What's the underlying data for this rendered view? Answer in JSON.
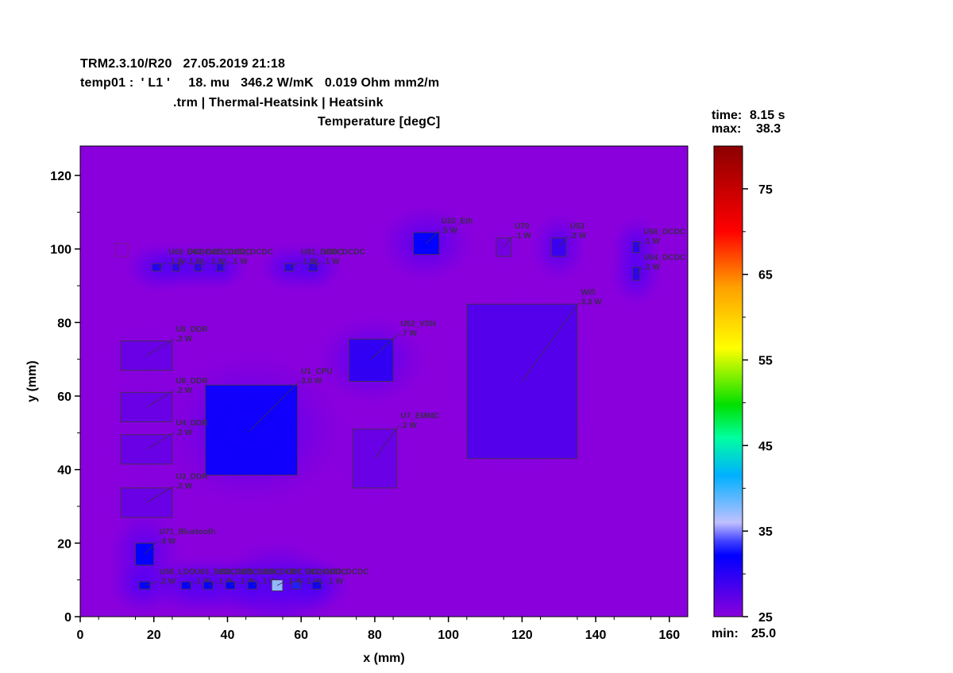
{
  "header": {
    "line1": "TRM2.3.10/R20   27.05.2019 21:18",
    "line2": "temp01 :  ' L1 '     18. mu   346.2 W/mK   0.019 Ohm mm2/m",
    "line3": ".trm | Thermal-Heatsink | Heatsink"
  },
  "info": {
    "time_label": "time:",
    "time_value": "8.15 s",
    "max_label": "max:",
    "max_value": "38.3",
    "min_label": "min:",
    "min_value": "25.0"
  },
  "chart_data": {
    "type": "heatmap",
    "title": "Temperature [degC]",
    "xlabel": "x (mm)",
    "ylabel": "y (mm)",
    "xlim": [
      0,
      165
    ],
    "ylim": [
      0,
      128
    ],
    "xticks": [
      0,
      20,
      40,
      60,
      80,
      100,
      120,
      140,
      160
    ],
    "yticks": [
      0,
      20,
      40,
      60,
      80,
      100,
      120
    ],
    "colorbar": {
      "range": [
        25,
        80
      ],
      "ticks": [
        25,
        35,
        45,
        55,
        65,
        75
      ],
      "colors": [
        "#8a00dc",
        "#0000ff",
        "#00b0ff",
        "#00e000",
        "#ffff00",
        "#ff8000",
        "#ff0000",
        "#8b0000"
      ]
    },
    "components": [
      {
        "name": "U1_CPU",
        "power": "3.0 W",
        "x1": 34,
        "x2": 59,
        "y1": 38.5,
        "y2": 63,
        "temp": 30.5,
        "lx": 60,
        "ly": 66,
        "ax": 46,
        "ay": 50.5
      },
      {
        "name": "U52_VSN",
        "power": ".7 W",
        "x1": 73,
        "x2": 85,
        "y1": 64,
        "y2": 75.5,
        "temp": 29,
        "lx": 87,
        "ly": 79,
        "ax": 79,
        "ay": 70
      },
      {
        "name": "Wifi",
        "power": "3.3 W",
        "x1": 105,
        "x2": 135,
        "y1": 43,
        "y2": 85,
        "temp": 27.5,
        "lx": 136,
        "ly": 87.5,
        "ax": 120,
        "ay": 64
      },
      {
        "name": "U7_EMMC",
        "power": ".2 W",
        "x1": 74,
        "x2": 86,
        "y1": 35,
        "y2": 51,
        "temp": 26.5,
        "lx": 87,
        "ly": 54,
        "ax": 80,
        "ay": 43
      },
      {
        "name": "U20_Eth",
        "power": ".5 W",
        "x1": 90.5,
        "x2": 97.5,
        "y1": 98.5,
        "y2": 104.5,
        "temp": 31,
        "lx": 98,
        "ly": 107,
        "ax": 94,
        "ay": 101.5
      },
      {
        "name": "U70",
        "power": ".1 W",
        "x1": 113,
        "x2": 117,
        "y1": 98,
        "y2": 103,
        "temp": 26,
        "lx": 118,
        "ly": 105.5,
        "ax": 115,
        "ay": 100.5
      },
      {
        "name": "U53",
        "power": ".2 W",
        "x1": 128,
        "x2": 132,
        "y1": 98,
        "y2": 103,
        "temp": 28.5,
        "lx": 133,
        "ly": 105.5,
        "ax": 130,
        "ay": 100.5
      },
      {
        "name": "U56_DCDC",
        "power": ".1 W",
        "x1": 150,
        "x2": 152,
        "y1": 99,
        "y2": 102,
        "temp": 29,
        "lx": 153,
        "ly": 104,
        "ax": 151,
        "ay": 100.5
      },
      {
        "name": "U54_DCDC",
        "power": ".1 W",
        "x1": 150,
        "x2": 152,
        "y1": 91.5,
        "y2": 95,
        "temp": 29,
        "lx": 153,
        "ly": 97,
        "ax": 151,
        "ay": 93
      },
      {
        "name": "U5_DDR",
        "power": ".2 W",
        "x1": 11,
        "x2": 25,
        "y1": 67,
        "y2": 75,
        "temp": 26.5,
        "lx": 26,
        "ly": 77.5,
        "ax": 18,
        "ay": 71
      },
      {
        "name": "U6_DDR",
        "power": ".2 W",
        "x1": 11,
        "x2": 25,
        "y1": 53,
        "y2": 61,
        "temp": 26.5,
        "lx": 26,
        "ly": 63.5,
        "ax": 18,
        "ay": 57
      },
      {
        "name": "U4_DDR",
        "power": ".2 W",
        "x1": 11,
        "x2": 25,
        "y1": 41.5,
        "y2": 49.5,
        "temp": 26.5,
        "lx": 26,
        "ly": 52,
        "ax": 18,
        "ay": 45.5
      },
      {
        "name": "U3_DDR",
        "power": ".2 W",
        "x1": 11,
        "x2": 25,
        "y1": 27,
        "y2": 35,
        "temp": 26.5,
        "lx": 26,
        "ly": 37.5,
        "ax": 18,
        "ay": 31
      },
      {
        "name": "U71_Bluetooth",
        "power": ".4 W",
        "x1": 15,
        "x2": 20,
        "y1": 14,
        "y2": 20,
        "temp": 31,
        "lx": 21.5,
        "ly": 22.5,
        "ax": 17.5,
        "ay": 17
      },
      {
        "name": "U69_DCDC",
        "power": ".1 W",
        "x1": 19.5,
        "x2": 22,
        "y1": 94,
        "y2": 96,
        "temp": 29.5,
        "lx": 24,
        "ly": 98.5,
        "ax": 21,
        "ay": 95
      },
      {
        "name": "U60_DCDC",
        "power": ".1 W",
        "x1": 25,
        "x2": 27,
        "y1": 94,
        "y2": 96,
        "temp": 29,
        "lx": 29,
        "ly": 98.5,
        "ax": 26,
        "ay": 95
      },
      {
        "name": "U61_DCDC",
        "power": ".1 W",
        "x1": 31,
        "x2": 33,
        "y1": 94,
        "y2": 96,
        "temp": 29,
        "lx": 35,
        "ly": 98.5,
        "ax": 32,
        "ay": 95
      },
      {
        "name": "U62_DCDC",
        "power": ".1 W",
        "x1": 37,
        "x2": 39,
        "y1": 94,
        "y2": 96,
        "temp": 29,
        "lx": 41,
        "ly": 98.5,
        "ax": 38,
        "ay": 95
      },
      {
        "name": "U81_DCDC",
        "power": ".1 W",
        "x1": 55.5,
        "x2": 58,
        "y1": 94,
        "y2": 96,
        "temp": 29,
        "lx": 60,
        "ly": 98.5,
        "ax": 57,
        "ay": 95
      },
      {
        "name": "U80_DCDC",
        "power": ".1 W",
        "x1": 62,
        "x2": 64.5,
        "y1": 94,
        "y2": 96,
        "temp": 29,
        "lx": 66,
        "ly": 98.5,
        "ax": 63,
        "ay": 95
      },
      {
        "name": "U68_LDO",
        "power": ".2 W",
        "x1": 16,
        "x2": 19,
        "y1": 7.5,
        "y2": 9.5,
        "temp": 31,
        "lx": 21.5,
        "ly": 11.5,
        "ax": 17.5,
        "ay": 8.5
      },
      {
        "name": "U63_DCDC",
        "power": ".1 W",
        "x1": 27.5,
        "x2": 30,
        "y1": 7.5,
        "y2": 9.5,
        "temp": 31,
        "lx": 31,
        "ly": 11.5,
        "ax": 29,
        "ay": 8.5
      },
      {
        "name": "U64_DCDC",
        "power": ".1 W",
        "x1": 33.5,
        "x2": 36,
        "y1": 7.5,
        "y2": 9.5,
        "temp": 31,
        "lx": 37,
        "ly": 11.5,
        "ax": 35,
        "ay": 8.5
      },
      {
        "name": "U65_DCDC",
        "power": ".1 W",
        "x1": 39.5,
        "x2": 42,
        "y1": 7.5,
        "y2": 9.5,
        "temp": 31,
        "lx": 43,
        "ly": 11.5,
        "ax": 41,
        "ay": 8.5
      },
      {
        "name": "U66_DCDC",
        "power": ".1 W",
        "x1": 45.5,
        "x2": 48,
        "y1": 7.5,
        "y2": 9.5,
        "temp": 31,
        "lx": 49,
        "ly": 11.5,
        "ax": 47,
        "ay": 8.5
      },
      {
        "name": "U67_DCDC",
        "power": ".1 W",
        "x1": 52,
        "x2": 55,
        "y1": 7,
        "y2": 10,
        "temp": 37,
        "lx": 56,
        "ly": 11.5,
        "ax": 53.5,
        "ay": 8.5
      },
      {
        "name": "U82_DCDC",
        "power": ".1 W",
        "x1": 57.5,
        "x2": 60,
        "y1": 7.5,
        "y2": 9.5,
        "temp": 32,
        "lx": 61,
        "ly": 11.5,
        "ax": 59,
        "ay": 8.5
      },
      {
        "name": "U83_DCDC",
        "power": ".1 W",
        "x1": 63,
        "x2": 65.5,
        "y1": 7.5,
        "y2": 9.5,
        "temp": 30.5,
        "lx": 67,
        "ly": 11.5,
        "ax": 64,
        "ay": 8.5
      },
      {
        "name": "",
        "power": "",
        "x1": 9.5,
        "x2": 13,
        "y1": 98,
        "y2": 101.5,
        "temp": 25,
        "lx": 0,
        "ly": 0,
        "ax": 0,
        "ay": 0,
        "dashed": true
      }
    ]
  }
}
